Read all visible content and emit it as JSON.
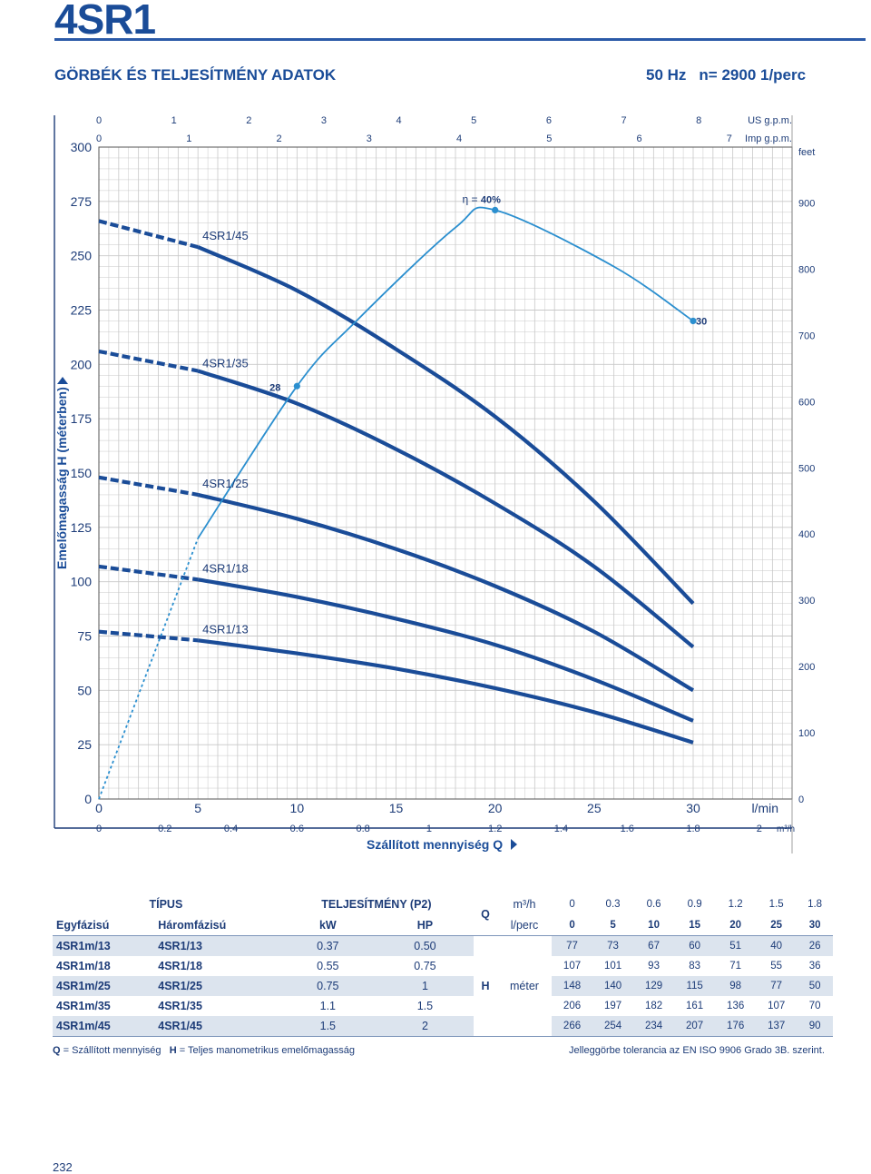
{
  "header": {
    "title": "4SR1",
    "subtitle": "GÖRBÉK ÉS TELJESÍTMÉNY ADATOK",
    "frequency": "50 Hz",
    "speed": "n= 2900 1/perc"
  },
  "chart_data": {
    "type": "line",
    "xlabel": "Szállított mennyiség Q",
    "ylabel": "Emelőmagasság H (méterben)",
    "x_unit": "l/min",
    "x_ticks": [
      "0",
      "5",
      "10",
      "15",
      "20",
      "25",
      "30"
    ],
    "m3h_ticks": [
      "0",
      "0.2",
      "0.4",
      "0.6",
      "0.8",
      "1",
      "1.2",
      "1.4",
      "1.6",
      "1.8",
      "2"
    ],
    "m3h_unit": "m³/h",
    "us_gpm_ticks": [
      "0",
      "1",
      "2",
      "3",
      "4",
      "5",
      "6",
      "7",
      "8"
    ],
    "us_gpm_label": "US g.p.m.",
    "imp_gpm_ticks": [
      "0",
      "1",
      "2",
      "3",
      "4",
      "5",
      "6",
      "7"
    ],
    "imp_gpm_label": "Imp g.p.m.",
    "y_ticks": [
      "0",
      "25",
      "50",
      "75",
      "100",
      "125",
      "150",
      "175",
      "200",
      "225",
      "250",
      "275",
      "300"
    ],
    "feet_ticks": [
      "0",
      "100",
      "200",
      "300",
      "400",
      "500",
      "600",
      "700",
      "800",
      "900"
    ],
    "feet_label": "feet",
    "xlim": [
      0,
      33.4
    ],
    "ylim": [
      0,
      300
    ],
    "grid": true,
    "colors": {
      "curve": "#1a4c98",
      "efficiency": "#2b8fcf",
      "grid": "#bfbfbf"
    },
    "series": [
      {
        "name": "4SR1/45",
        "x": [
          0,
          5,
          10,
          15,
          20,
          25,
          30
        ],
        "y": [
          266,
          254,
          234,
          207,
          176,
          137,
          90
        ],
        "dashed_until": 5
      },
      {
        "name": "4SR1/35",
        "x": [
          0,
          5,
          10,
          15,
          20,
          25,
          30
        ],
        "y": [
          206,
          197,
          182,
          161,
          136,
          107,
          70
        ],
        "dashed_until": 5
      },
      {
        "name": "4SR1/25",
        "x": [
          0,
          5,
          10,
          15,
          20,
          25,
          30
        ],
        "y": [
          148,
          140,
          129,
          115,
          98,
          77,
          50
        ],
        "dashed_until": 5
      },
      {
        "name": "4SR1/18",
        "x": [
          0,
          5,
          10,
          15,
          20,
          25,
          30
        ],
        "y": [
          107,
          101,
          93,
          83,
          71,
          55,
          36
        ],
        "dashed_until": 5
      },
      {
        "name": "4SR1/13",
        "x": [
          0,
          5,
          10,
          15,
          20,
          25,
          30
        ],
        "y": [
          77,
          73,
          67,
          60,
          51,
          40,
          26
        ],
        "dashed_until": 5
      }
    ],
    "efficiency": {
      "label_prefix": "η = ",
      "label_value": "40%",
      "x": [
        0,
        2.5,
        5,
        10,
        13,
        18,
        20,
        26,
        30
      ],
      "y": [
        0,
        60,
        120,
        190,
        220,
        263,
        271,
        245,
        220
      ],
      "dashed_until": 5,
      "markers": [
        {
          "label": "28",
          "x": 10,
          "y": 190
        },
        {
          "label": "",
          "x": 20,
          "y": 271
        },
        {
          "label": "30",
          "x": 30,
          "y": 220
        }
      ]
    }
  },
  "table": {
    "col_tipus": "TÍPUS",
    "col_power": "TELJESÍTMÉNY (P2)",
    "col_single": "Egyfázisú",
    "col_three": "Háromfázisú",
    "col_kw": "kW",
    "col_hp": "HP",
    "q_label": "Q",
    "h_label": "H",
    "m3h_label": "m³/h",
    "lperc_label": "l/perc",
    "meter_label": "méter",
    "q_m3h": [
      "0",
      "0.3",
      "0.6",
      "0.9",
      "1.2",
      "1.5",
      "1.8"
    ],
    "q_lperc": [
      "0",
      "5",
      "10",
      "15",
      "20",
      "25",
      "30"
    ],
    "rows": [
      {
        "single": "4SR1m/13",
        "three": "4SR1/13",
        "kw": "0.37",
        "hp": "0.50",
        "h": [
          "77",
          "73",
          "67",
          "60",
          "51",
          "40",
          "26"
        ]
      },
      {
        "single": "4SR1m/18",
        "three": "4SR1/18",
        "kw": "0.55",
        "hp": "0.75",
        "h": [
          "107",
          "101",
          "93",
          "83",
          "71",
          "55",
          "36"
        ]
      },
      {
        "single": "4SR1m/25",
        "three": "4SR1/25",
        "kw": "0.75",
        "hp": "1",
        "h": [
          "148",
          "140",
          "129",
          "115",
          "98",
          "77",
          "50"
        ]
      },
      {
        "single": "4SR1m/35",
        "three": "4SR1/35",
        "kw": "1.1",
        "hp": "1.5",
        "h": [
          "206",
          "197",
          "182",
          "161",
          "136",
          "107",
          "70"
        ]
      },
      {
        "single": "4SR1m/45",
        "three": "4SR1/45",
        "kw": "1.5",
        "hp": "2",
        "h": [
          "266",
          "254",
          "234",
          "207",
          "176",
          "137",
          "90"
        ]
      }
    ]
  },
  "footer": {
    "legend_q_key": "Q",
    "legend_q_text": " = Szállított mennyiség",
    "legend_h_key": "H",
    "legend_h_text": " = Teljes manometrikus emelőmagasság",
    "tolerance": "Jelleggörbe tolerancia az EN ISO 9906 Grado 3B. szerint.",
    "page_number": "232"
  }
}
